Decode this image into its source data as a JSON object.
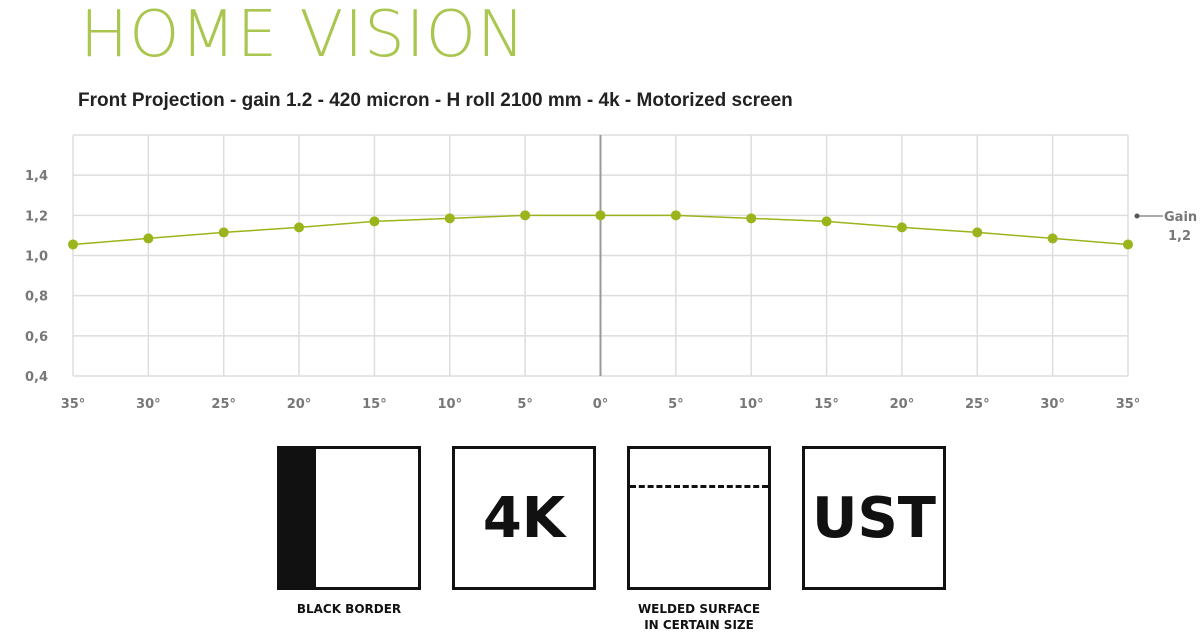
{
  "header": {
    "brand": "HOME VISION",
    "subtitle": "Front Projection - gain 1.2 - 420 micron - H roll 2100 mm - 4k - Motorized screen"
  },
  "chart_data": {
    "type": "line",
    "title": "",
    "xlabel": "",
    "ylabel": "",
    "categories": [
      "35°",
      "30°",
      "25°",
      "20°",
      "15°",
      "10°",
      "5°",
      "0°",
      "5°",
      "10°",
      "15°",
      "20°",
      "25°",
      "30°",
      "35°"
    ],
    "series": [
      {
        "name": "Gain 1,2",
        "values": [
          1.055,
          1.085,
          1.115,
          1.14,
          1.17,
          1.185,
          1.2,
          1.2,
          1.2,
          1.185,
          1.17,
          1.14,
          1.115,
          1.085,
          1.055
        ]
      }
    ],
    "y_ticks": [
      "0,4",
      "0,6",
      "0,8",
      "1,0",
      "1,2",
      "1,4"
    ],
    "ylim": [
      0.4,
      1.6
    ],
    "grid": true,
    "legend": "right",
    "legend_line1": "Gain",
    "legend_line2": "1,2",
    "color": "#9ab51c"
  },
  "features": [
    {
      "icon": "black-border-icon",
      "label": "BLACK BORDER"
    },
    {
      "icon": "4k-icon",
      "text": "4K"
    },
    {
      "icon": "welded-surface-icon",
      "label1": "WELDED SURFACE",
      "label2": "IN CERTAIN SIZE"
    },
    {
      "icon": "ust-icon",
      "text": "UST"
    }
  ]
}
